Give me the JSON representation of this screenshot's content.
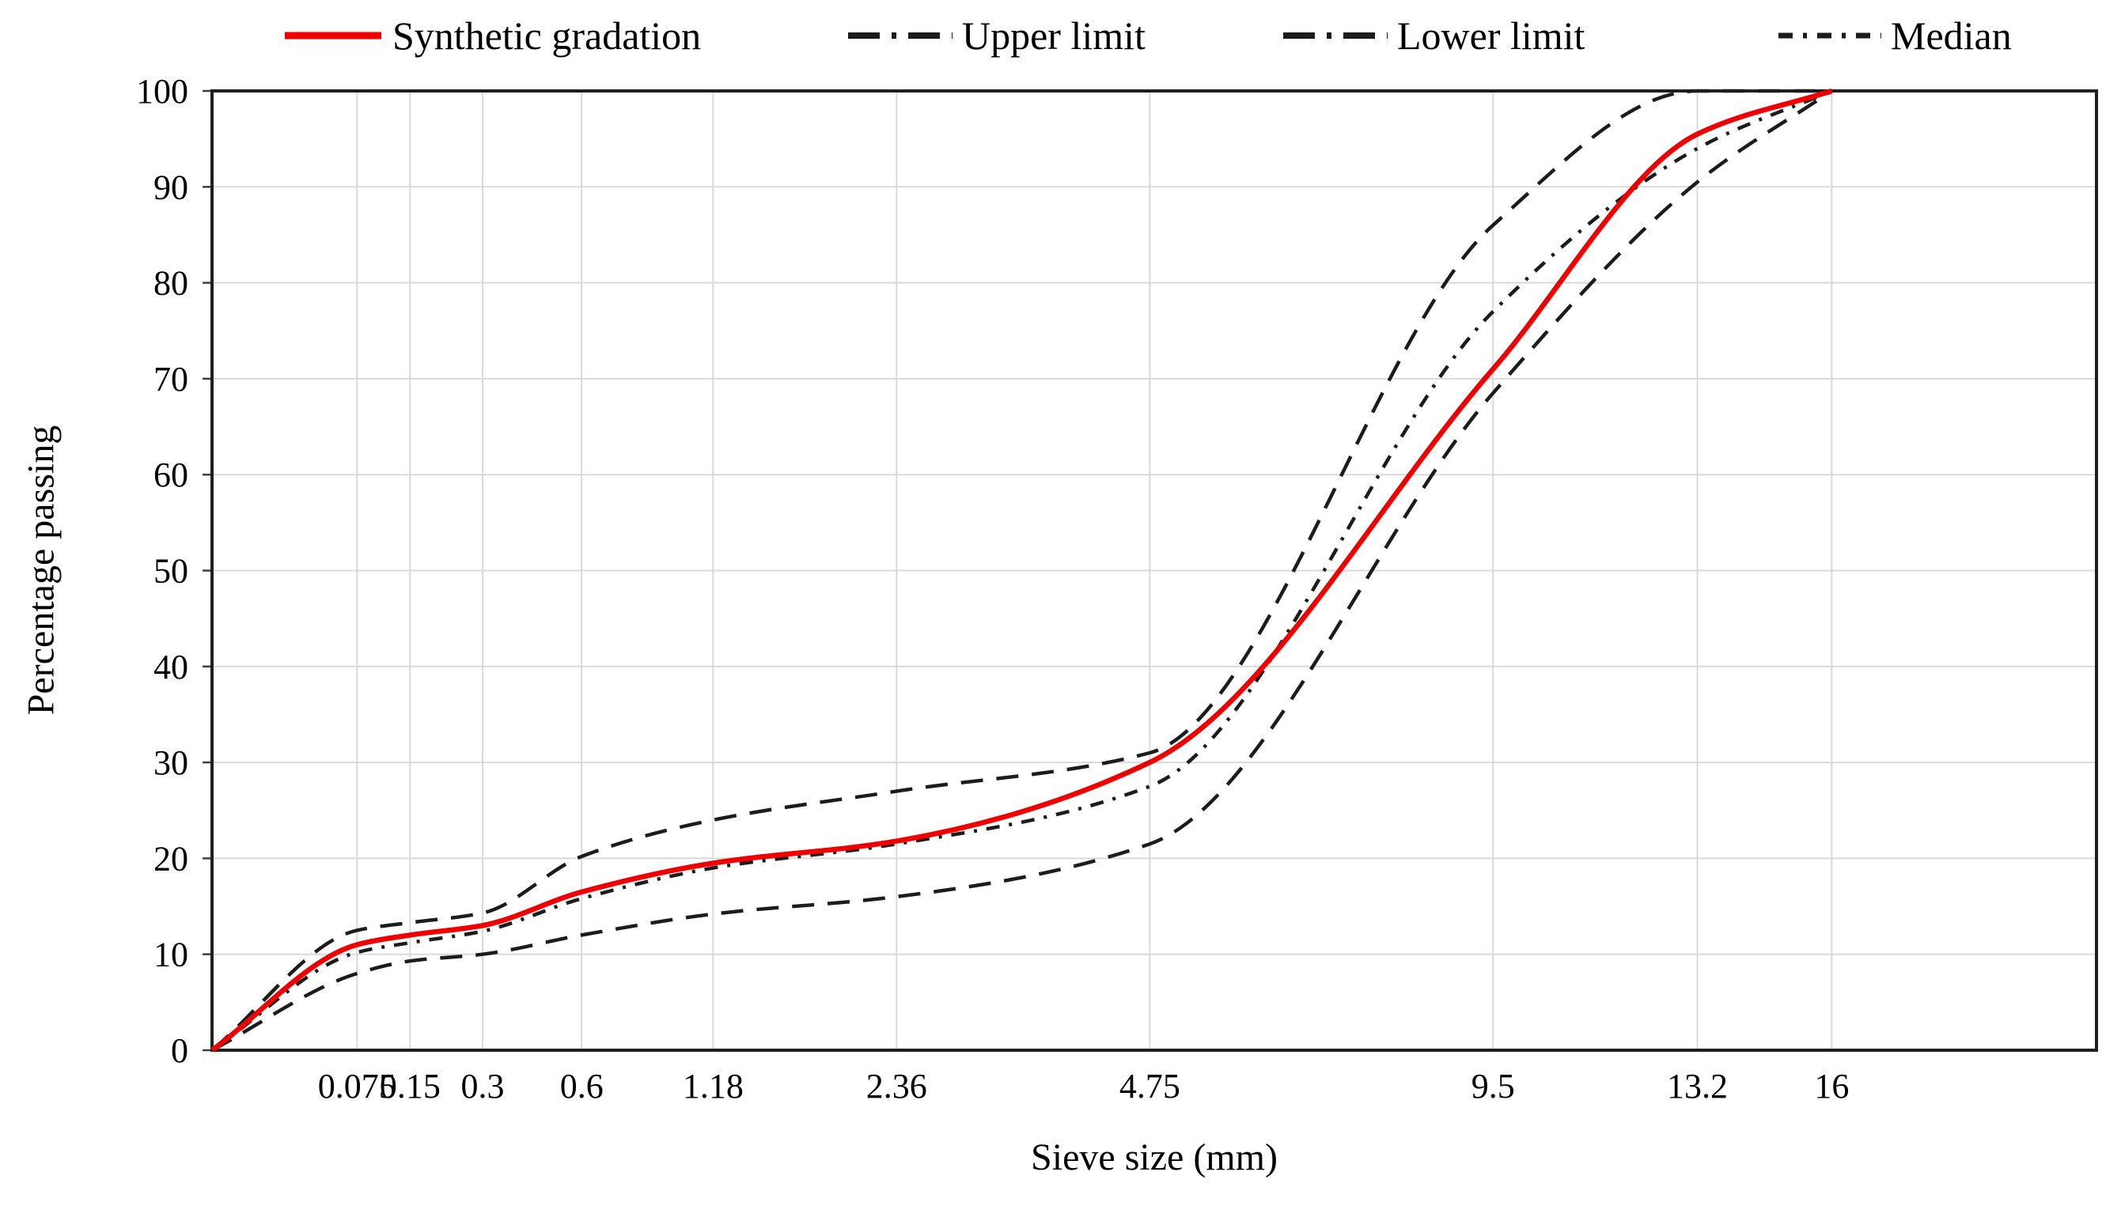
{
  "chart_data": {
    "type": "line",
    "title": "",
    "xlabel": "Sieve size (mm)",
    "ylabel": "Percentage passing",
    "x_scale": "power",
    "x_scale_power": 0.45,
    "x_axis_max_mm": 22.4,
    "ylim": [
      0,
      100
    ],
    "y_ticks": [
      0,
      10,
      20,
      30,
      40,
      50,
      60,
      70,
      80,
      90,
      100
    ],
    "y_tick_labels": [
      "0",
      "10",
      "20",
      "30",
      "40",
      "50",
      "60",
      "70",
      "80",
      "90",
      "100"
    ],
    "categories": [
      "0.075",
      "0.15",
      "0.3",
      "0.6",
      "1.18",
      "2.36",
      "4.75",
      "9.5",
      "13.2",
      "16"
    ],
    "x_values_mm": [
      0,
      0.075,
      0.15,
      0.3,
      0.6,
      1.18,
      2.36,
      4.75,
      9.5,
      13.2,
      16
    ],
    "grid": "on",
    "legend_position": "top",
    "colors": {
      "synthetic": "#ee0000",
      "limits": "#1c1c1c",
      "gridline": "#d9d9d9",
      "frame": "#1f1f1f",
      "tick": "#3f3f3f"
    },
    "series": [
      {
        "name": "Synthetic gradation",
        "color": "#ee0000",
        "dash": "solid",
        "width": 6.5,
        "values": [
          0,
          11,
          12,
          13,
          16.5,
          19.5,
          21.8,
          30,
          71,
          95.5,
          100
        ]
      },
      {
        "name": "Upper limit",
        "color": "#1c1c1c",
        "dash": "dash",
        "width": 4.5,
        "values": [
          0,
          12.5,
          13.3,
          14.3,
          20.2,
          24,
          27,
          31,
          86,
          100,
          100
        ]
      },
      {
        "name": "Lower limit",
        "color": "#1c1c1c",
        "dash": "dash",
        "width": 4.5,
        "values": [
          0,
          8,
          9.3,
          10,
          12,
          14.2,
          16,
          21.5,
          68.5,
          90.5,
          100
        ]
      },
      {
        "name": "Median",
        "color": "#1c1c1c",
        "dash": "dashdot",
        "width": 4.5,
        "values": [
          0,
          10.2,
          11.2,
          12.4,
          15.8,
          19,
          21.5,
          27.5,
          77,
          94,
          100
        ]
      }
    ]
  }
}
